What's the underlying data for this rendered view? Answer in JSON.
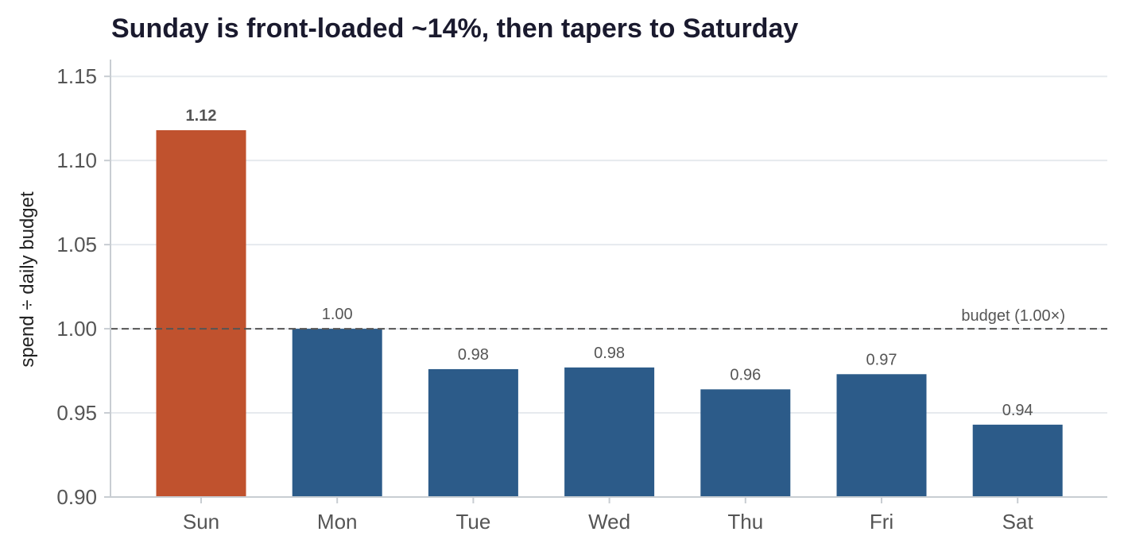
{
  "chart_data": {
    "type": "bar",
    "title": "Sunday is front-loaded ~14%, then tapers to Saturday",
    "xlabel": "",
    "ylabel": "spend ÷ daily budget",
    "categories": [
      "Sun",
      "Mon",
      "Tue",
      "Wed",
      "Thu",
      "Fri",
      "Sat"
    ],
    "values": [
      1.118,
      1.0,
      0.976,
      0.977,
      0.964,
      0.973,
      0.943
    ],
    "value_labels": [
      "1.12",
      "1.00",
      "0.98",
      "0.98",
      "0.96",
      "0.97",
      "0.94"
    ],
    "highlight_index": 0,
    "ylim": [
      0.9,
      1.16
    ],
    "yticks": [
      0.9,
      0.95,
      1.0,
      1.05,
      1.1,
      1.15
    ],
    "ytick_labels": [
      "0.90",
      "0.95",
      "1.00",
      "1.05",
      "1.10",
      "1.15"
    ],
    "grid": true,
    "reference_line": {
      "value": 1.0,
      "label": "budget (1.00×)",
      "style": "dashed"
    },
    "colors": {
      "bar": "#2c5b89",
      "highlight": "#c0522e",
      "grid": "#e6eaee",
      "reference": "#555555",
      "axis": "#c8cdd2"
    }
  }
}
